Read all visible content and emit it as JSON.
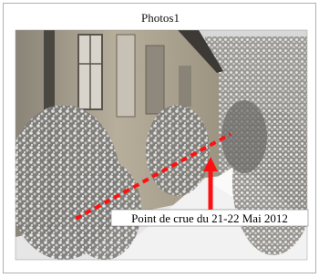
{
  "caption": "Photos1",
  "annotation": "Point de crue du 21-22 Mai 2012"
}
